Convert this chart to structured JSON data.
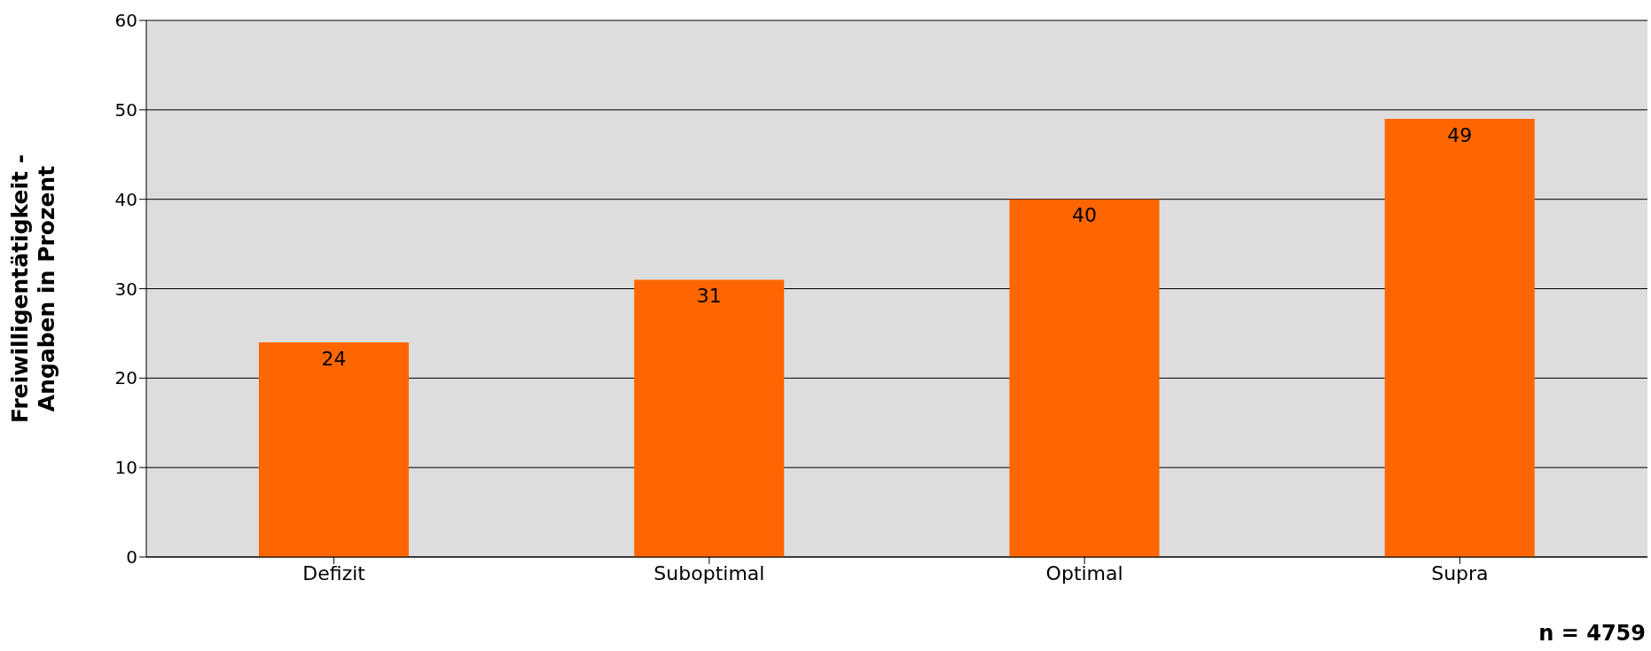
{
  "chart_data": {
    "type": "bar",
    "ylabel": "Freiwilligentätigkeit - Angaben in Prozent",
    "categories": [
      "Defizit",
      "Suboptimal",
      "Optimal",
      "Supra"
    ],
    "values": [
      24,
      31,
      40,
      49
    ],
    "color": "#ff6600",
    "ylim": [
      0,
      60
    ],
    "yticks": [
      0,
      10,
      20,
      30,
      40,
      50,
      60
    ],
    "grid": "y",
    "data_labels": true,
    "annotations": [
      "n = 4759"
    ]
  }
}
